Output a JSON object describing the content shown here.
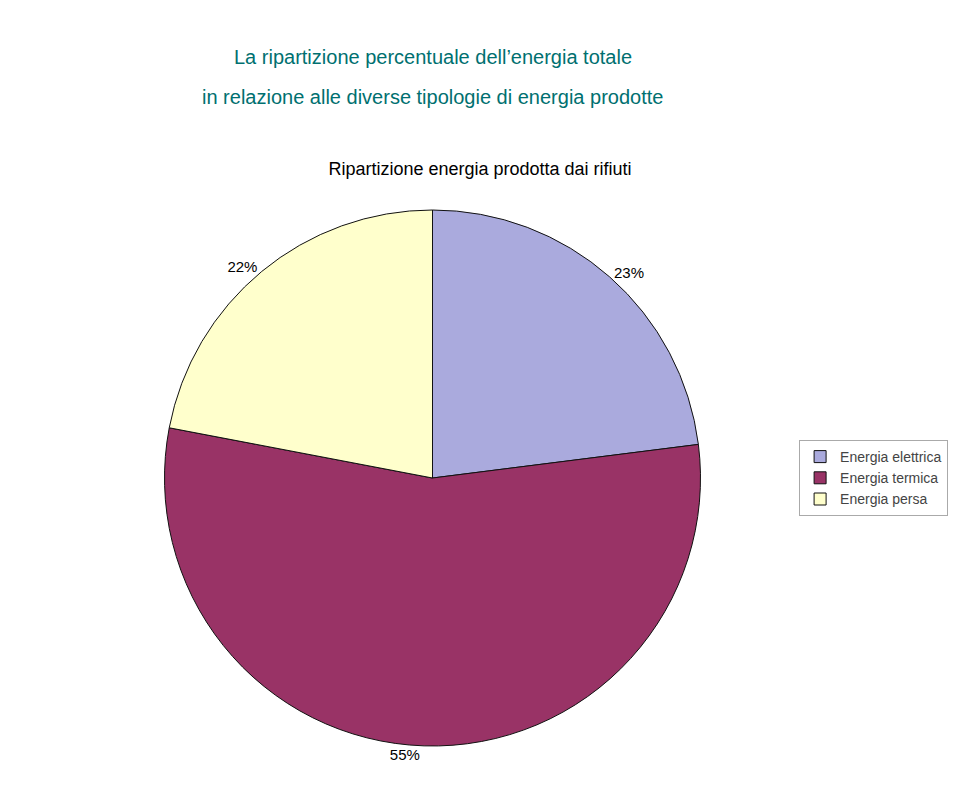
{
  "chart_data": {
    "type": "pie",
    "title": "Ripartizione energia prodotta dai rifiuti",
    "annotations": [
      "La ripartizione percentuale dell’energia totale",
      "in relazione alle diverse tipologie di energia prodotte"
    ],
    "categories": [
      "Energia elettrica",
      "Energia termica",
      "Energia persa"
    ],
    "values": [
      23,
      55,
      22
    ],
    "value_labels": [
      "23%",
      "55%",
      "22%"
    ],
    "colors": [
      "#aaaadd",
      "#993366",
      "#ffffcc"
    ],
    "data_labels": true,
    "legend": "right"
  }
}
